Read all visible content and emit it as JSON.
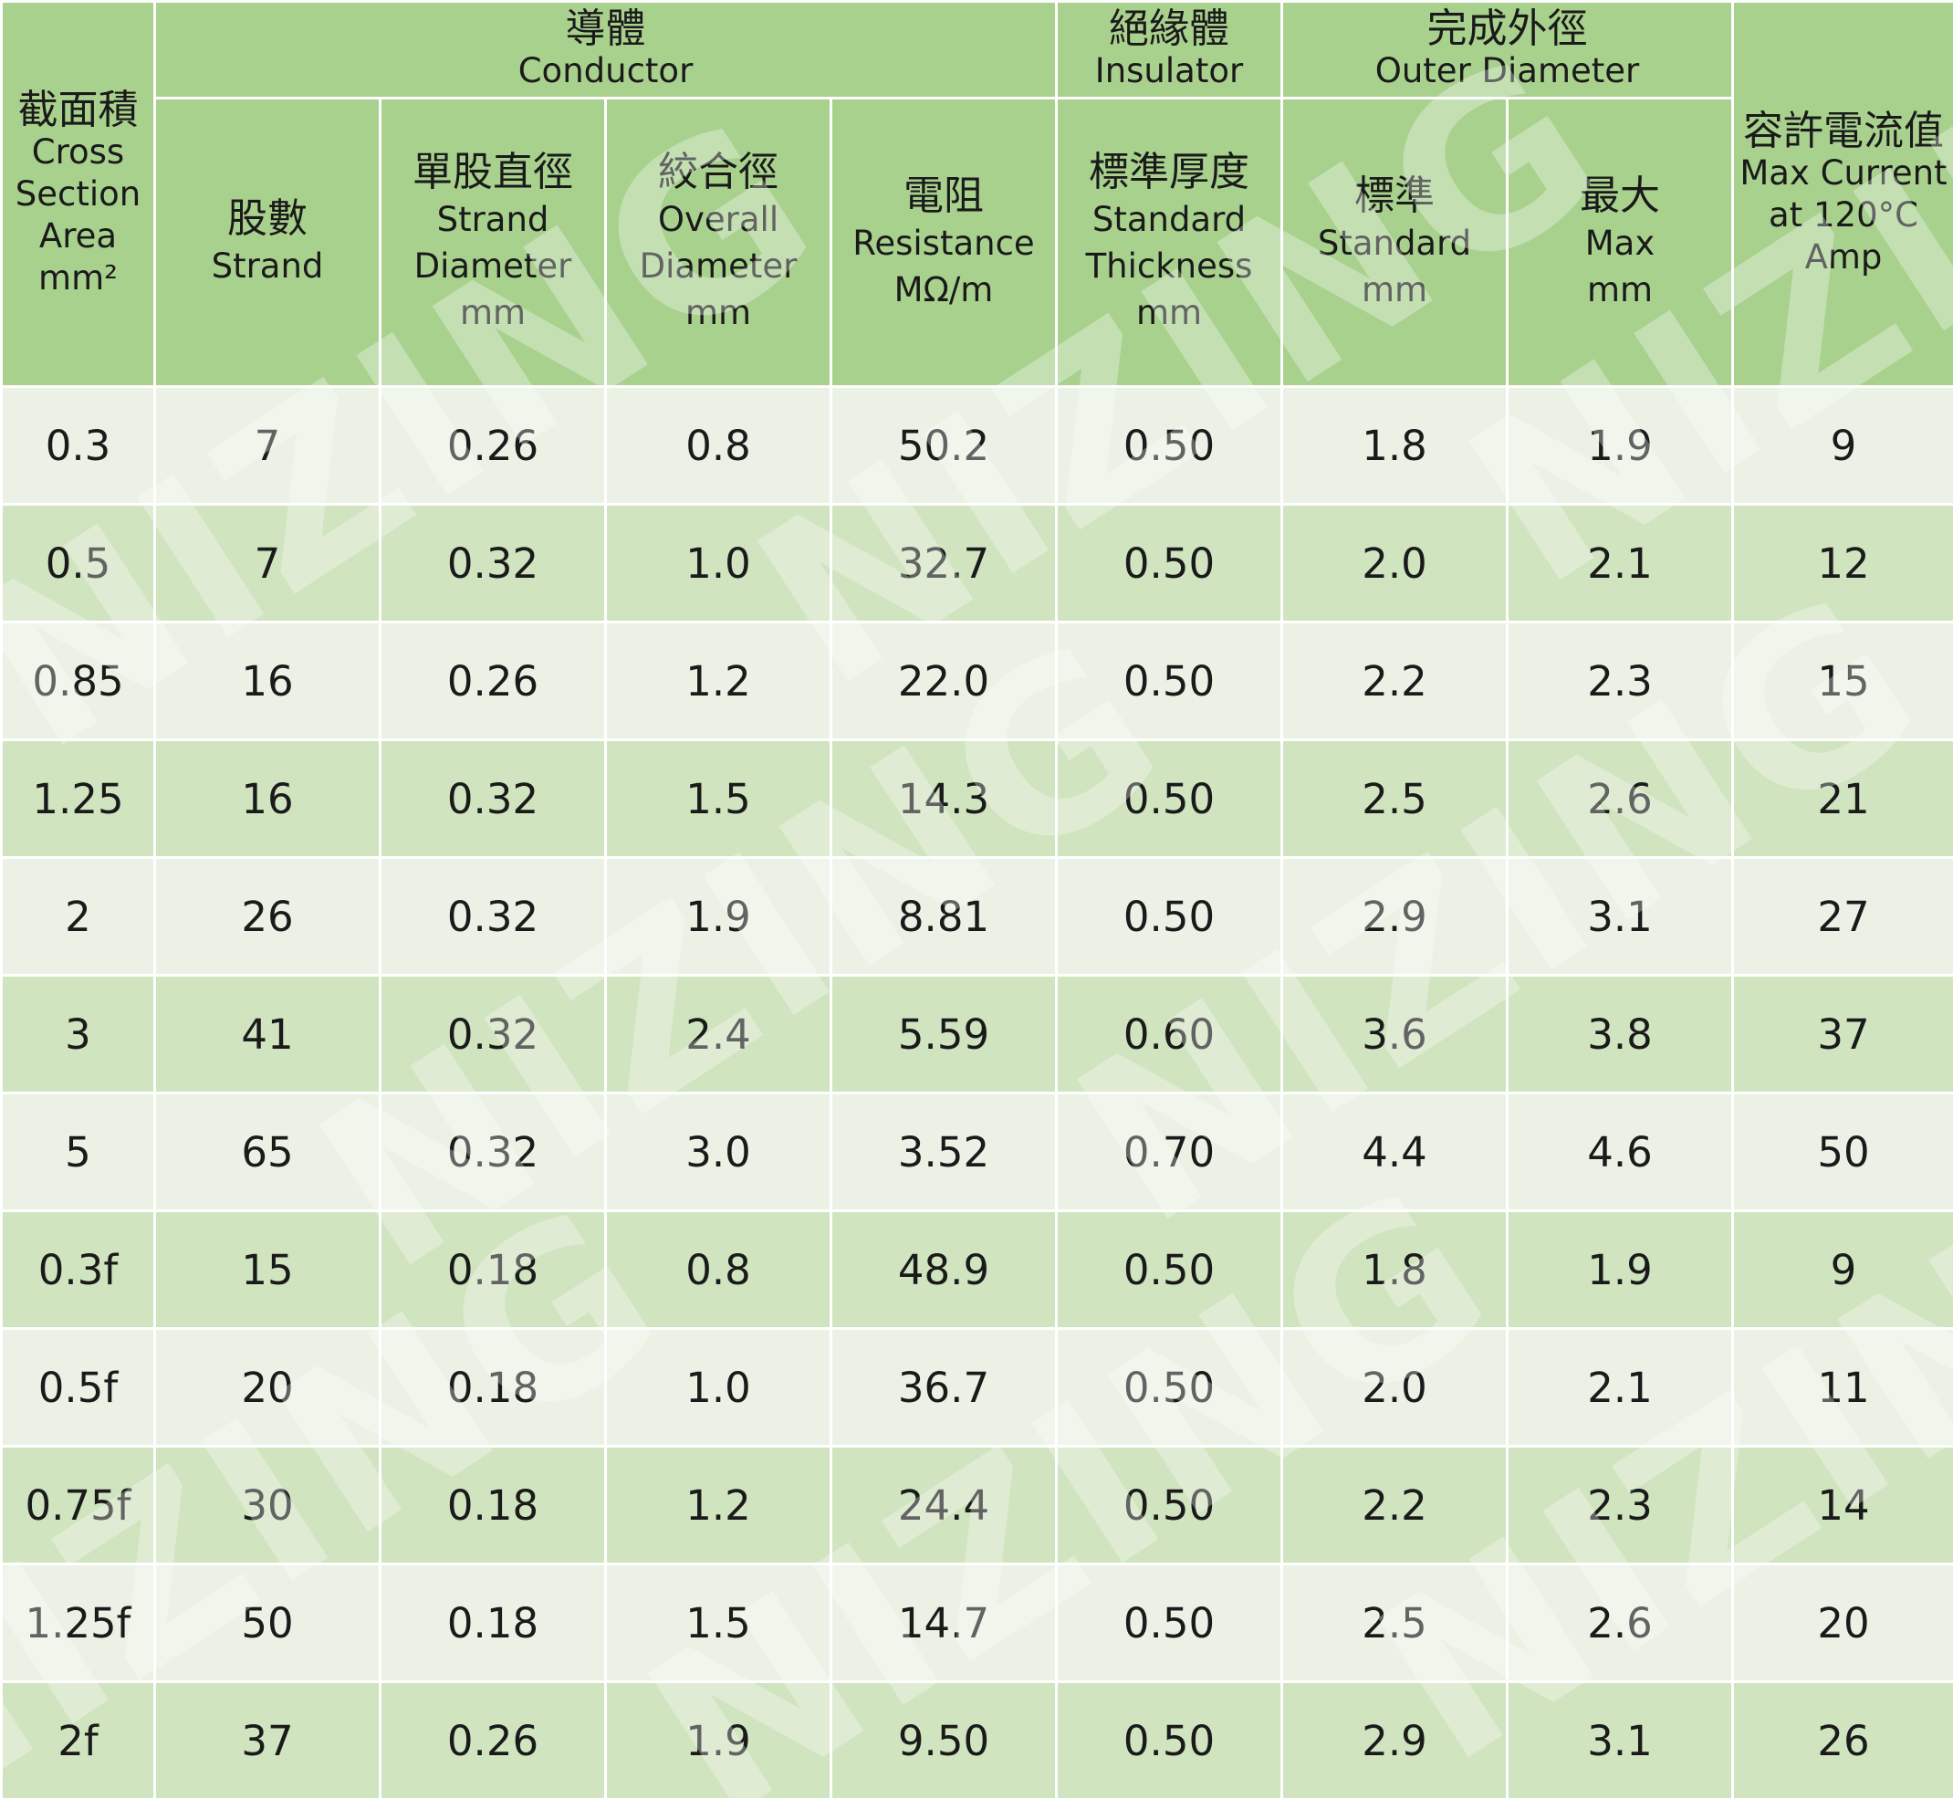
{
  "table": {
    "headers": {
      "cross_section": {
        "zh": "截面積",
        "en_lines": [
          "Cross",
          "Section",
          "Area",
          "mm²"
        ]
      },
      "conductor": {
        "zh": "導體",
        "en": "Conductor"
      },
      "insulator": {
        "zh": "絕緣體",
        "en": "Insulator"
      },
      "outer_diameter": {
        "zh": "完成外徑",
        "en": "Outer Diameter"
      },
      "max_current": {
        "zh": "容許電流值",
        "en_lines": [
          "Max Current",
          "at 120°C",
          "Amp"
        ]
      },
      "strand": {
        "zh": "股數",
        "en_lines": [
          "Strand"
        ]
      },
      "strand_diameter": {
        "zh": "單股直徑",
        "en_lines": [
          "Strand",
          "Diameter",
          "mm"
        ]
      },
      "overall_diameter": {
        "zh": "絞合徑",
        "en_lines": [
          "Overall",
          "Diameter",
          "mm"
        ]
      },
      "resistance": {
        "zh": "電阻",
        "en_lines": [
          "Resistance",
          "MΩ/m"
        ]
      },
      "standard_thickness": {
        "zh": "標準厚度",
        "en_lines": [
          "Standard",
          "Thickness",
          "mm"
        ]
      },
      "od_standard": {
        "zh": "標準",
        "en_lines": [
          "Standard",
          "mm"
        ]
      },
      "od_max": {
        "zh": "最大",
        "en_lines": [
          "Max",
          "mm"
        ]
      }
    },
    "rows": [
      [
        "0.3",
        "7",
        "0.26",
        "0.8",
        "50.2",
        "0.50",
        "1.8",
        "1.9",
        "9"
      ],
      [
        "0.5",
        "7",
        "0.32",
        "1.0",
        "32.7",
        "0.50",
        "2.0",
        "2.1",
        "12"
      ],
      [
        "0.85",
        "16",
        "0.26",
        "1.2",
        "22.0",
        "0.50",
        "2.2",
        "2.3",
        "15"
      ],
      [
        "1.25",
        "16",
        "0.32",
        "1.5",
        "14.3",
        "0.50",
        "2.5",
        "2.6",
        "21"
      ],
      [
        "2",
        "26",
        "0.32",
        "1.9",
        "8.81",
        "0.50",
        "2.9",
        "3.1",
        "27"
      ],
      [
        "3",
        "41",
        "0.32",
        "2.4",
        "5.59",
        "0.60",
        "3.6",
        "3.8",
        "37"
      ],
      [
        "5",
        "65",
        "0.32",
        "3.0",
        "3.52",
        "0.70",
        "4.4",
        "4.6",
        "50"
      ],
      [
        "0.3f",
        "15",
        "0.18",
        "0.8",
        "48.9",
        "0.50",
        "1.8",
        "1.9",
        "9"
      ],
      [
        "0.5f",
        "20",
        "0.18",
        "1.0",
        "36.7",
        "0.50",
        "2.0",
        "2.1",
        "11"
      ],
      [
        "0.75f",
        "30",
        "0.18",
        "1.2",
        "24.4",
        "0.50",
        "2.2",
        "2.3",
        "14"
      ],
      [
        "1.25f",
        "50",
        "0.18",
        "1.5",
        "14.7",
        "0.50",
        "2.5",
        "2.6",
        "20"
      ],
      [
        "2f",
        "37",
        "0.26",
        "1.9",
        "9.50",
        "0.50",
        "2.9",
        "3.1",
        "26"
      ]
    ]
  },
  "watermark": {
    "text": "NIZING"
  },
  "colors": {
    "header_bg": "#a9d18e",
    "row_light": "#ebf2e5",
    "row_dark": "#d0e4bf"
  }
}
